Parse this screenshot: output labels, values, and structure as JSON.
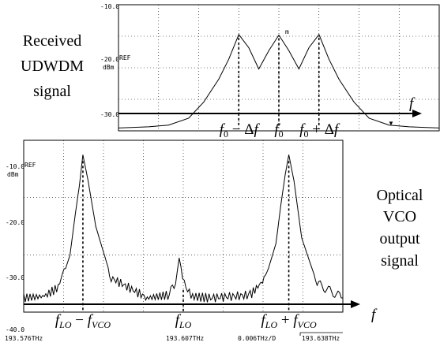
{
  "chart_data": [
    {
      "type": "line",
      "title": "Received UDWDM signal",
      "ylabel": "dBm",
      "ref_label": "REF",
      "y_ticks": [
        "-10.0",
        "-20.0",
        "-30.0"
      ],
      "ylim": [
        -32,
        -10
      ],
      "series": [
        {
          "x": [
            -1.6,
            -1.3,
            -1.1,
            -0.9,
            -0.75,
            -0.6,
            -0.5,
            -0.4,
            -0.3,
            -0.2,
            -0.1,
            0,
            0.1,
            0.2,
            0.3,
            0.4,
            0.5,
            0.6,
            0.75,
            0.9,
            1.1,
            1.3,
            1.6
          ],
          "values": [
            -31.5,
            -31.3,
            -31.0,
            -29.8,
            -27,
            -23,
            -19.5,
            -15.2,
            -17.5,
            -21.2,
            -18,
            -15.3,
            -18,
            -21.2,
            -17.5,
            -15.2,
            -19.5,
            -23,
            -27,
            -29.8,
            -31.0,
            -31.3,
            -31.5
          ]
        }
      ],
      "axis_symbol": "f",
      "annotations": [
        {
          "x": -0.4,
          "parts": [
            [
              "f",
              "it"
            ],
            [
              "0",
              "sub"
            ],
            [
              " − Δ",
              "rm"
            ],
            [
              "f",
              "it"
            ]
          ]
        },
        {
          "x": 0,
          "parts": [
            [
              "f",
              "it"
            ],
            [
              "0",
              "sub"
            ]
          ]
        },
        {
          "x": 0.4,
          "parts": [
            [
              "f",
              "it"
            ],
            [
              "0",
              "sub"
            ],
            [
              " + Δ",
              "rm"
            ],
            [
              "f",
              "it"
            ]
          ]
        }
      ]
    },
    {
      "type": "line",
      "title": "Optical VCO output signal",
      "ylabel": "dBm",
      "ref_label": "REF",
      "y_ticks": [
        "-10.0",
        "-20.0",
        "-30.0",
        "-40.0"
      ],
      "ylim": [
        -40,
        -10
      ],
      "x_labels": [
        "193.576THz",
        "193.607THz",
        "0.006THz/D",
        "193.638THz"
      ],
      "series": [
        {
          "x": [
            193.576,
            193.58,
            193.583,
            193.585,
            193.586,
            193.5868,
            193.5875,
            193.5885,
            193.59,
            193.593,
            193.6,
            193.604,
            193.6055,
            193.6062,
            193.6072,
            193.6085,
            193.612,
            193.62,
            193.623,
            193.625,
            193.626,
            193.6268,
            193.6275,
            193.6285,
            193.63,
            193.633,
            193.638
          ],
          "values": [
            -34.5,
            -34.2,
            -32.5,
            -27,
            -20,
            -15,
            -9.5,
            -14,
            -22,
            -31,
            -34.5,
            -34,
            -32,
            -27.5,
            -32,
            -34.2,
            -34.5,
            -34,
            -31,
            -25,
            -18,
            -13,
            -9.5,
            -14,
            -24,
            -32,
            -34.5
          ]
        }
      ],
      "axis_symbol": "f",
      "annotations": [
        {
          "x": 193.5875,
          "parts": [
            [
              "f",
              "it"
            ],
            [
              "LO",
              "sub"
            ],
            [
              " − ",
              "rm"
            ],
            [
              "f",
              "it"
            ],
            [
              "VCO",
              "sub"
            ]
          ]
        },
        {
          "x": 193.607,
          "parts": [
            [
              "f",
              "it"
            ],
            [
              "LO",
              "sub"
            ]
          ]
        },
        {
          "x": 193.6275,
          "parts": [
            [
              "f",
              "it"
            ],
            [
              "LO",
              "sub"
            ],
            [
              " + ",
              "rm"
            ],
            [
              "f",
              "it"
            ],
            [
              "VCO",
              "sub"
            ]
          ]
        }
      ]
    }
  ],
  "labels": {
    "received": [
      "Received",
      "UDWDM",
      "signal"
    ],
    "vco": [
      "Optical",
      "VCO",
      "output",
      "signal"
    ],
    "marker_glyph": "▼",
    "marker_top": "m"
  }
}
